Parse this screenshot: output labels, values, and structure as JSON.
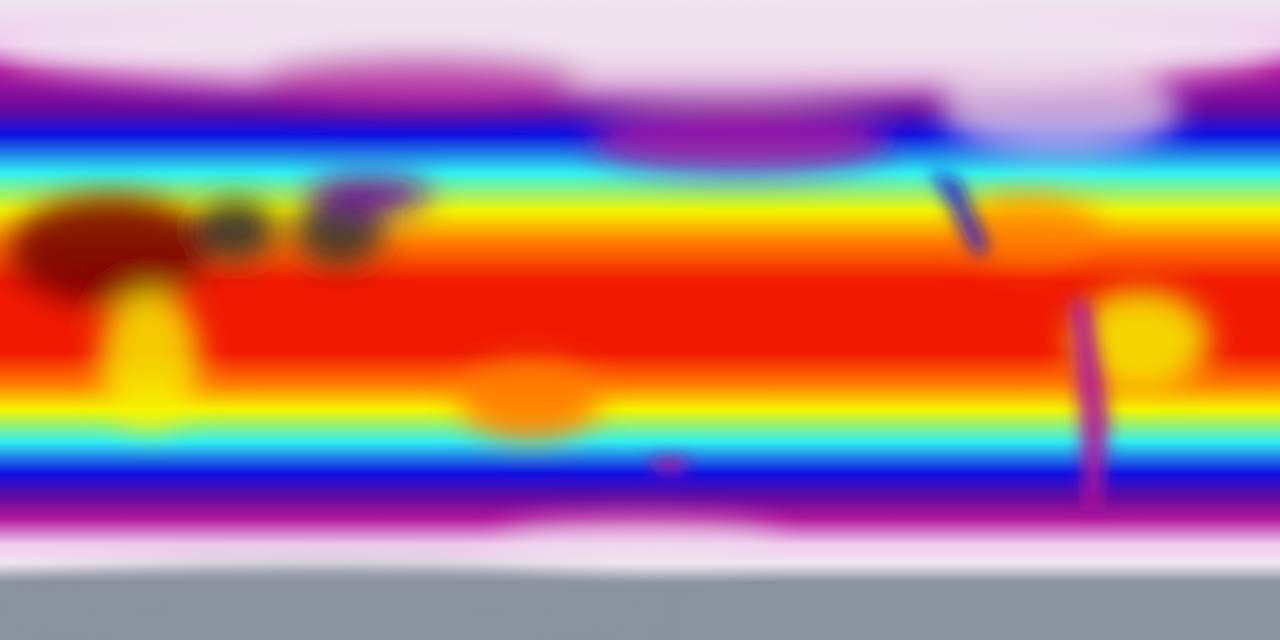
{
  "map": {
    "palette": {
      "polar_white": "#efe6ef",
      "light_pink": "#f0c8ee",
      "magenta": "#b0189a",
      "violet": "#6a0a9c",
      "blue": "#1010e0",
      "cyan": "#30f0f0",
      "yellow": "#f5f500",
      "orange": "#ff7a00",
      "red": "#f01a00",
      "dark_red": "#700000",
      "dark_grey": "#303030",
      "antarctic_grey": "#8a929e"
    }
  }
}
